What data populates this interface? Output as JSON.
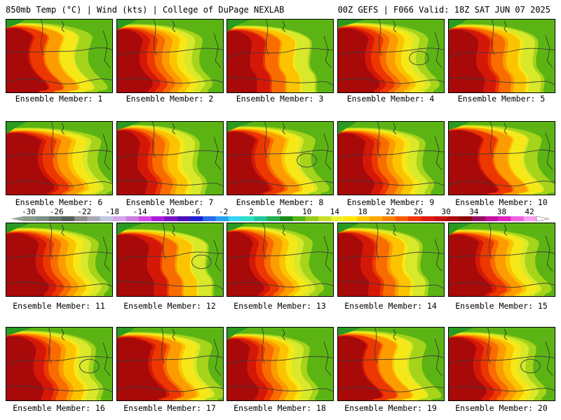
{
  "header": {
    "left_title": "850mb Temp (°C) | Wind (kts) | College of DuPage NEXLAB",
    "right_title": "00Z GEFS | F066 Valid: 18Z SAT JUN 07 2025"
  },
  "member_label_prefix": "Ensemble Member: ",
  "members": [
    "1",
    "2",
    "3",
    "4",
    "5",
    "6",
    "7",
    "8",
    "9",
    "10",
    "11",
    "12",
    "13",
    "14",
    "15",
    "16",
    "17",
    "18",
    "19",
    "20"
  ],
  "colorbar": {
    "tick_labels": [
      "-30",
      "-26",
      "-22",
      "-18",
      "-14",
      "-10",
      "-6",
      "-2",
      "2",
      "6",
      "10",
      "14",
      "18",
      "22",
      "26",
      "30",
      "34",
      "38",
      "42"
    ],
    "colors": [
      "#8c9c8c",
      "#7d8f86",
      "#68776f",
      "#56605b",
      "#8e8e8e",
      "#a9a9b6",
      "#c1c8e0",
      "#d5a6e8",
      "#c97fdc",
      "#d247e3",
      "#a81ed8",
      "#7a14c2",
      "#4a10b5",
      "#2020d0",
      "#2a6ae8",
      "#2aa0f0",
      "#39d4f0",
      "#2ae0c8",
      "#22c89a",
      "#22b050",
      "#1a8c1a",
      "#58b41a",
      "#98cc1a",
      "#c8e028",
      "#ecf030",
      "#fce800",
      "#fcc800",
      "#fca800",
      "#fc8400",
      "#f85c00",
      "#f03800",
      "#e01a10",
      "#c8100c",
      "#a80c0c",
      "#88080a",
      "#940c60",
      "#c010a0",
      "#e020c0",
      "#f060e0",
      "#f8a0f0"
    ]
  }
}
